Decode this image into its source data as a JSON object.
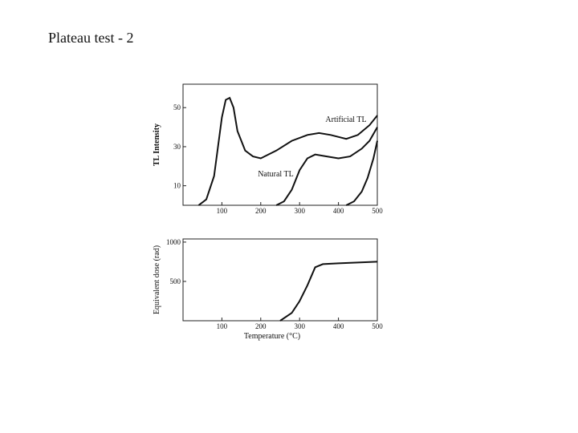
{
  "page_title": "Plateau test - 2",
  "chart_data": [
    {
      "type": "line",
      "ylabel": "TL Intensity",
      "xlim": [
        0,
        500
      ],
      "xticks": [
        100,
        200,
        300,
        400,
        500
      ],
      "ylim": [
        0,
        62
      ],
      "yticks": [
        10,
        30,
        50
      ],
      "series": [
        {
          "name": "Artificial TL",
          "color": "#111111",
          "x": [
            40,
            60,
            80,
            100,
            110,
            120,
            130,
            140,
            160,
            180,
            200,
            240,
            280,
            320,
            350,
            380,
            420,
            450,
            480,
            500
          ],
          "values": [
            0,
            3,
            15,
            45,
            54,
            55,
            50,
            38,
            28,
            25,
            24,
            28,
            33,
            36,
            37,
            36,
            34,
            36,
            41,
            46
          ]
        },
        {
          "name": "Natural TL",
          "color": "#111111",
          "x": [
            240,
            260,
            280,
            300,
            320,
            340,
            370,
            400,
            430,
            460,
            480,
            500
          ],
          "values": [
            0,
            2,
            8,
            18,
            24,
            26,
            25,
            24,
            25,
            29,
            33,
            40
          ]
        },
        {
          "color": "#111111",
          "x": [
            420,
            440,
            460,
            475,
            490,
            500
          ],
          "values": [
            0,
            2,
            7,
            14,
            24,
            33
          ]
        }
      ]
    },
    {
      "type": "line",
      "xlabel": "Temperature (°C)",
      "ylabel": "Equivalent dose (rad)",
      "xlim": [
        0,
        500
      ],
      "xticks": [
        100,
        200,
        300,
        400,
        500
      ],
      "ylim": [
        0,
        1040
      ],
      "yticks": [
        500,
        1000
      ],
      "series": [
        {
          "color": "#111111",
          "x": [
            250,
            280,
            300,
            320,
            340,
            360,
            400,
            450,
            500
          ],
          "values": [
            0,
            100,
            250,
            450,
            680,
            720,
            730,
            740,
            750
          ]
        }
      ]
    }
  ]
}
